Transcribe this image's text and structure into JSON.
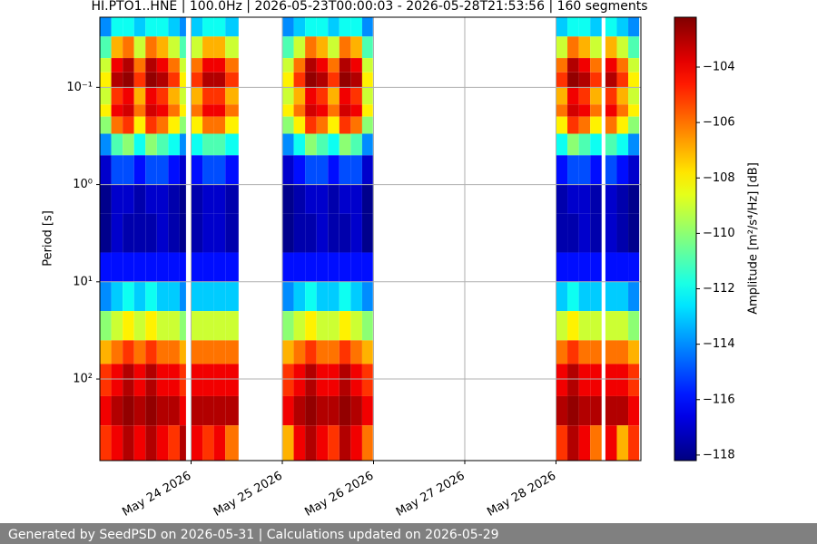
{
  "chart_data": {
    "type": "heatmap",
    "title": "HI.PTO1..HNE | 100.0Hz | 2026-05-23T00:00:03 - 2026-05-28T21:53:56 | 160 segments",
    "ylabel": "Period [s]",
    "colorbar_label": "Amplitude [m²/s⁴/Hz] [dB]",
    "xlim": [
      "2026-05-23T00:00",
      "2026-05-28T22:20"
    ],
    "xticks": [
      {
        "value": "2026-05-24",
        "label": "May 24 2026"
      },
      {
        "value": "2026-05-25",
        "label": "May 25 2026"
      },
      {
        "value": "2026-05-26",
        "label": "May 26 2026"
      },
      {
        "value": "2026-05-27",
        "label": "May 27 2026"
      },
      {
        "value": "2026-05-28",
        "label": "May 28 2026"
      }
    ],
    "ylim": [
      0.019,
      690
    ],
    "y_log": true,
    "y_inverted": true,
    "yticks": [
      {
        "value": 0.1,
        "label": "10⁻¹"
      },
      {
        "value": 1,
        "label": "10⁰"
      },
      {
        "value": 10,
        "label": "10¹"
      },
      {
        "value": 100,
        "label": "10²"
      }
    ],
    "grid": true,
    "colormap": "jet",
    "clim": [
      -118.2,
      -102.2
    ],
    "cticks": [
      {
        "value": -118,
        "label": "−118"
      },
      {
        "value": -116,
        "label": "−116"
      },
      {
        "value": -114,
        "label": "−114"
      },
      {
        "value": -112,
        "label": "−112"
      },
      {
        "value": -110,
        "label": "−110"
      },
      {
        "value": -108,
        "label": "−108"
      },
      {
        "value": -106,
        "label": "−106"
      },
      {
        "value": -104,
        "label": "−104"
      }
    ],
    "y_bins": [
      0.019,
      0.03,
      0.05,
      0.07,
      0.1,
      0.15,
      0.2,
      0.3,
      0.5,
      1,
      2,
      5,
      10,
      20,
      40,
      70,
      150,
      300,
      690
    ],
    "columns": [
      {
        "start": "2026-05-23T00:00",
        "end": "2026-05-23T03:00",
        "values": [
          -114,
          -111,
          -109,
          -108,
          -109,
          -108,
          -110,
          -114,
          -117,
          -118,
          -118,
          -116,
          -114,
          -110,
          -107,
          -105,
          -104,
          -105
        ]
      },
      {
        "start": "2026-05-23T03:00",
        "end": "2026-05-23T06:00",
        "values": [
          -112,
          -107,
          -104,
          -103,
          -105,
          -104,
          -106,
          -111,
          -115,
          -117,
          -117,
          -116,
          -113,
          -109,
          -106,
          -104,
          -103,
          -104
        ]
      },
      {
        "start": "2026-05-23T06:00",
        "end": "2026-05-23T09:00",
        "values": [
          -112,
          -106,
          -103,
          -102.5,
          -104,
          -103.5,
          -105,
          -110,
          -115,
          -117,
          -117.5,
          -116,
          -112,
          -108,
          -105,
          -103,
          -102.5,
          -103
        ]
      },
      {
        "start": "2026-05-23T09:00",
        "end": "2026-05-23T12:00",
        "values": [
          -113,
          -109,
          -106,
          -105,
          -107,
          -106,
          -108,
          -112,
          -116,
          -117.5,
          -117.5,
          -116,
          -113,
          -109,
          -106,
          -104,
          -103,
          -104
        ]
      },
      {
        "start": "2026-05-23T12:00",
        "end": "2026-05-23T15:00",
        "values": [
          -112,
          -106,
          -103,
          -102.5,
          -104,
          -103.5,
          -105,
          -110,
          -115,
          -117,
          -117.5,
          -116,
          -112,
          -108,
          -105,
          -103,
          -102.5,
          -103
        ]
      },
      {
        "start": "2026-05-23T15:00",
        "end": "2026-05-23T18:00",
        "values": [
          -112,
          -107,
          -104,
          -103,
          -105,
          -104,
          -106,
          -111,
          -115,
          -117,
          -117,
          -116,
          -113,
          -109,
          -106,
          -104,
          -103,
          -104
        ]
      },
      {
        "start": "2026-05-23T18:00",
        "end": "2026-05-23T21:00",
        "values": [
          -113,
          -109,
          -106,
          -105,
          -107,
          -106,
          -108,
          -112,
          -116,
          -117.5,
          -117.5,
          -116,
          -113,
          -109,
          -106,
          -104,
          -103,
          -105
        ]
      },
      {
        "start": "2026-05-23T21:00",
        "end": "2026-05-23T22:40",
        "values": [
          -114,
          -111,
          -109,
          -108,
          -109,
          -108,
          -110,
          -114,
          -117,
          -118,
          -118,
          -116,
          -114,
          -110,
          -107,
          -105,
          -104,
          -103
        ]
      },
      {
        "start": "2026-05-24T00:00",
        "end": "2026-05-24T03:00",
        "values": [
          -113,
          -109,
          -106,
          -105,
          -107,
          -106,
          -108,
          -112,
          -116,
          -117.5,
          -117.5,
          -116,
          -113,
          -109,
          -106,
          -104,
          -103,
          -104
        ]
      },
      {
        "start": "2026-05-24T03:00",
        "end": "2026-05-24T06:00",
        "values": [
          -112,
          -107,
          -104,
          -103,
          -105,
          -104,
          -106,
          -111,
          -115,
          -117,
          -117,
          -116,
          -113,
          -109,
          -106,
          -104,
          -103,
          -105
        ]
      },
      {
        "start": "2026-05-24T06:00",
        "end": "2026-05-24T09:00",
        "values": [
          -112,
          -107,
          -104,
          -103,
          -105,
          -104,
          -106,
          -111,
          -115,
          -117,
          -117,
          -116,
          -113,
          -109,
          -106,
          -104,
          -103,
          -104
        ]
      },
      {
        "start": "2026-05-24T09:00",
        "end": "2026-05-24T12:30",
        "values": [
          -113,
          -109,
          -106,
          -105,
          -107,
          -106,
          -108,
          -112,
          -116,
          -117.5,
          -117.5,
          -116,
          -113,
          -109,
          -106,
          -104,
          -103,
          -106
        ]
      },
      {
        "start": "2026-05-25T00:00",
        "end": "2026-05-25T03:00",
        "values": [
          -114,
          -111,
          -109,
          -108,
          -109,
          -108,
          -110,
          -114,
          -117,
          -118,
          -118,
          -116,
          -114,
          -110,
          -107,
          -105,
          -104,
          -107
        ]
      },
      {
        "start": "2026-05-25T03:00",
        "end": "2026-05-25T06:00",
        "values": [
          -113,
          -109,
          -106,
          -105,
          -107,
          -106,
          -108,
          -112,
          -116,
          -117.5,
          -117.5,
          -116,
          -113,
          -109,
          -106,
          -104,
          -103,
          -104
        ]
      },
      {
        "start": "2026-05-25T06:00",
        "end": "2026-05-25T09:00",
        "values": [
          -112,
          -106,
          -103,
          -102.5,
          -104,
          -103.5,
          -105,
          -110,
          -115,
          -117,
          -117.5,
          -116,
          -112,
          -108,
          -105,
          -103,
          -102.5,
          -103
        ]
      },
      {
        "start": "2026-05-25T09:00",
        "end": "2026-05-25T12:00",
        "values": [
          -112,
          -107,
          -104,
          -103,
          -105,
          -104,
          -106,
          -111,
          -115,
          -117,
          -117,
          -116,
          -113,
          -109,
          -106,
          -104,
          -103,
          -104
        ]
      },
      {
        "start": "2026-05-25T12:00",
        "end": "2026-05-25T15:00",
        "values": [
          -113,
          -109,
          -106,
          -105,
          -107,
          -106,
          -108,
          -112,
          -116,
          -117.5,
          -117.5,
          -116,
          -113,
          -109,
          -106,
          -104,
          -103,
          -105
        ]
      },
      {
        "start": "2026-05-25T15:00",
        "end": "2026-05-25T18:00",
        "values": [
          -112,
          -106,
          -103,
          -102.5,
          -104,
          -103.5,
          -105,
          -110,
          -115,
          -117,
          -117.5,
          -116,
          -112,
          -108,
          -105,
          -103,
          -102.5,
          -103
        ]
      },
      {
        "start": "2026-05-25T18:00",
        "end": "2026-05-25T21:00",
        "values": [
          -112,
          -107,
          -104,
          -103,
          -105,
          -104,
          -106,
          -111,
          -115,
          -117,
          -117,
          -116,
          -113,
          -109,
          -106,
          -104,
          -103,
          -104
        ]
      },
      {
        "start": "2026-05-25T21:00",
        "end": "2026-05-25T23:50",
        "values": [
          -114,
          -111,
          -109,
          -108,
          -109,
          -108,
          -110,
          -114,
          -117,
          -118,
          -118,
          -116,
          -114,
          -110,
          -107,
          -105,
          -104,
          -106
        ]
      },
      {
        "start": "2026-05-28T00:00",
        "end": "2026-05-28T03:00",
        "values": [
          -113,
          -109,
          -106,
          -105,
          -107,
          -106,
          -108,
          -112,
          -116,
          -117.5,
          -117.5,
          -116,
          -113,
          -109,
          -106,
          -104,
          -103,
          -105
        ]
      },
      {
        "start": "2026-05-28T03:00",
        "end": "2026-05-28T06:00",
        "values": [
          -112,
          -106,
          -103,
          -102.5,
          -104,
          -103.5,
          -105,
          -110,
          -115,
          -117,
          -117.5,
          -116,
          -112,
          -108,
          -105,
          -103,
          -102.5,
          -103
        ]
      },
      {
        "start": "2026-05-28T06:00",
        "end": "2026-05-28T09:00",
        "values": [
          -112,
          -107,
          -104,
          -103,
          -105,
          -104,
          -106,
          -111,
          -115,
          -117,
          -117,
          -116,
          -113,
          -109,
          -106,
          -104,
          -103,
          -104
        ]
      },
      {
        "start": "2026-05-28T09:00",
        "end": "2026-05-28T12:00",
        "values": [
          -113,
          -109,
          -106,
          -105,
          -107,
          -106,
          -108,
          -112,
          -116,
          -117.5,
          -117.5,
          -116,
          -113,
          -109,
          -106,
          -104,
          -103,
          -106
        ]
      },
      {
        "start": "2026-05-28T13:00",
        "end": "2026-05-28T16:00",
        "values": [
          -112,
          -107,
          -104,
          -103,
          -105,
          -104,
          -106,
          -111,
          -115,
          -117,
          -117,
          -116,
          -113,
          -109,
          -106,
          -104,
          -103,
          -104
        ]
      },
      {
        "start": "2026-05-28T16:00",
        "end": "2026-05-28T19:00",
        "values": [
          -113,
          -109,
          -106,
          -105,
          -107,
          -106,
          -108,
          -112,
          -116,
          -117.5,
          -117.5,
          -116,
          -113,
          -109,
          -106,
          -104,
          -103,
          -107
        ]
      },
      {
        "start": "2026-05-28T19:00",
        "end": "2026-05-28T21:54",
        "values": [
          -114,
          -111,
          -109,
          -108,
          -109,
          -108,
          -110,
          -114,
          -117,
          -118,
          -118,
          -116,
          -114,
          -110,
          -107,
          -105,
          -104,
          -105
        ]
      }
    ]
  },
  "footer": {
    "text": "Generated by SeedPSD on 2026-05-31 | Calculations updated on 2026-05-29"
  }
}
